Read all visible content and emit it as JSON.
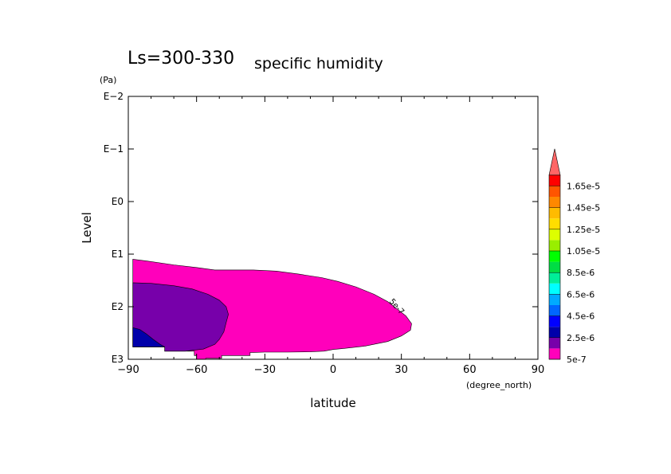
{
  "chart_data": {
    "type": "heatmap",
    "title_main": "Ls=300-330",
    "title_sub": "specific humidity",
    "xlabel": "latitude",
    "xunit": "(degree_north)",
    "ylabel": "Level",
    "yunit": "(Pa)",
    "xlim": [
      -90,
      90
    ],
    "ylim": [
      0.01,
      1000
    ],
    "yscale": "log",
    "ydirection": "decreasing-upward",
    "x_ticks": [
      {
        "value": -90,
        "label": "−90"
      },
      {
        "value": -60,
        "label": "−60"
      },
      {
        "value": -30,
        "label": "−30"
      },
      {
        "value": 0,
        "label": "0"
      },
      {
        "value": 30,
        "label": "30"
      },
      {
        "value": 60,
        "label": "60"
      },
      {
        "value": 90,
        "label": "90"
      }
    ],
    "y_ticks": [
      {
        "value": 0.01,
        "label": "E−2"
      },
      {
        "value": 0.1,
        "label": "E−1"
      },
      {
        "value": 1,
        "label": "E0"
      },
      {
        "value": 10,
        "label": "E1"
      },
      {
        "value": 100,
        "label": "E2"
      },
      {
        "value": 1000,
        "label": "E3"
      }
    ],
    "contour_label": "5e-7",
    "colorbar": {
      "levels": [
        {
          "label": "5e-7",
          "color": "#ff00bb"
        },
        {
          "label": "",
          "color": "#7700aa"
        },
        {
          "label": "2.5e-6",
          "color": "#0000aa"
        },
        {
          "label": "",
          "color": "#0000ff"
        },
        {
          "label": "4.5e-6",
          "color": "#0066ff"
        },
        {
          "label": "",
          "color": "#00aaff"
        },
        {
          "label": "6.5e-6",
          "color": "#00ffff"
        },
        {
          "label": "",
          "color": "#00ee99"
        },
        {
          "label": "8.5e-6",
          "color": "#00dd44"
        },
        {
          "label": "",
          "color": "#00ff00"
        },
        {
          "label": "1.05e-5",
          "color": "#99ee00"
        },
        {
          "label": "",
          "color": "#ddff00"
        },
        {
          "label": "1.25e-5",
          "color": "#ffdd00"
        },
        {
          "label": "",
          "color": "#ffbb00"
        },
        {
          "label": "1.45e-5",
          "color": "#ff8800"
        },
        {
          "label": "",
          "color": "#ff5500"
        },
        {
          "label": "1.65e-5",
          "color": "#ff0000"
        }
      ],
      "over_color": "#ff6666"
    },
    "regions": [
      {
        "level": "5e-7",
        "color": "#ff00bb",
        "points": [
          [
            -88,
            12.5
          ],
          [
            -82,
            13.5
          ],
          [
            -70,
            16
          ],
          [
            -60,
            18
          ],
          [
            -52,
            20
          ],
          [
            -45,
            20
          ],
          [
            -35,
            20
          ],
          [
            -25,
            21
          ],
          [
            -15,
            24
          ],
          [
            -5,
            28
          ],
          [
            2,
            33
          ],
          [
            10,
            42
          ],
          [
            18,
            58
          ],
          [
            24,
            80
          ],
          [
            28,
            110
          ],
          [
            32,
            150
          ],
          [
            34.5,
            210
          ],
          [
            34,
            280
          ],
          [
            30,
            360
          ],
          [
            24,
            460
          ],
          [
            14,
            560
          ],
          [
            5,
            620
          ],
          [
            0,
            650
          ],
          [
            -4,
            700
          ],
          [
            -10,
            720
          ],
          [
            -20,
            730
          ],
          [
            -30,
            730
          ],
          [
            -35,
            740
          ],
          [
            -36.5,
            740
          ],
          [
            -36.5,
            850
          ],
          [
            -49,
            850
          ],
          [
            -49,
            960
          ],
          [
            -56,
            960
          ],
          [
            -56,
            1000
          ],
          [
            -60,
            1000
          ],
          [
            -60,
            850
          ],
          [
            -61,
            850
          ],
          [
            -61,
            700
          ],
          [
            -74,
            700
          ],
          [
            -74,
            580
          ],
          [
            -88,
            580
          ]
        ]
      },
      {
        "level": "2.5e-6",
        "color": "#7700aa",
        "points": [
          [
            -88,
            35
          ],
          [
            -80,
            36
          ],
          [
            -70,
            40
          ],
          [
            -62,
            46
          ],
          [
            -55,
            58
          ],
          [
            -50,
            75
          ],
          [
            -47,
            100
          ],
          [
            -46,
            140
          ],
          [
            -47,
            200
          ],
          [
            -48,
            300
          ],
          [
            -50,
            420
          ],
          [
            -52,
            520
          ],
          [
            -57,
            640
          ],
          [
            -65,
            700
          ],
          [
            -74,
            700
          ],
          [
            -74,
            580
          ],
          [
            -88,
            580
          ]
        ]
      },
      {
        "level": "4.5e-6",
        "color": "#0000aa",
        "points": [
          [
            -88,
            250
          ],
          [
            -85,
            270
          ],
          [
            -82,
            330
          ],
          [
            -79,
            420
          ],
          [
            -76,
            520
          ],
          [
            -74,
            580
          ],
          [
            -88,
            580
          ]
        ]
      }
    ]
  }
}
